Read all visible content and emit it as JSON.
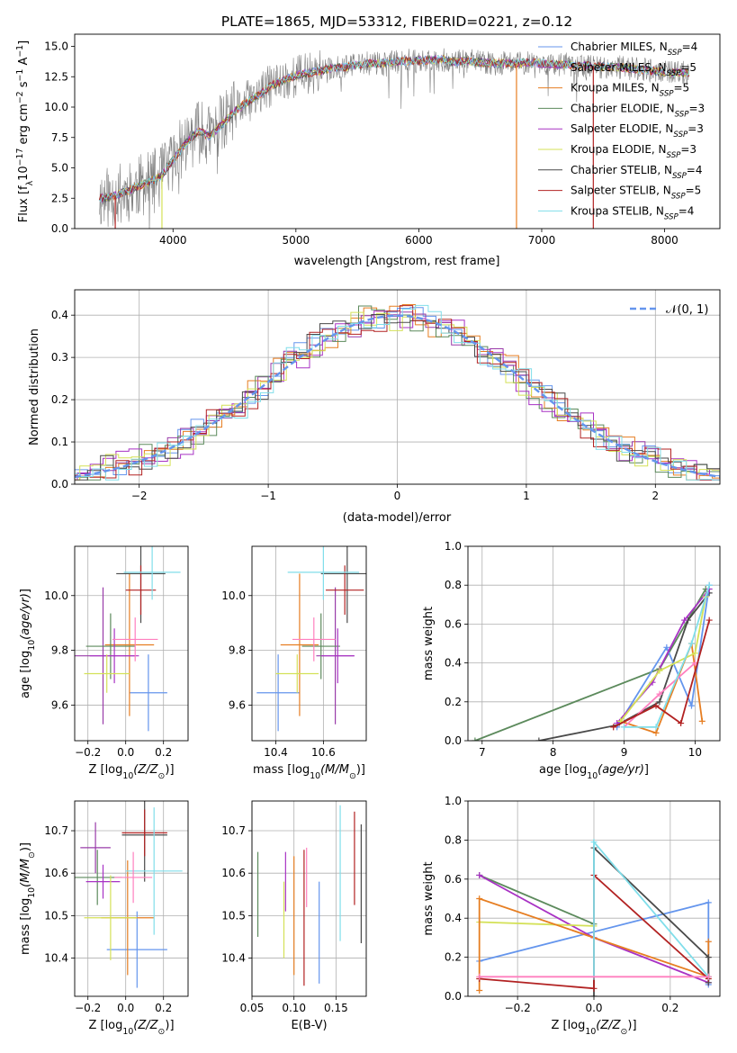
{
  "figure_title": "PLATE=1865, MJD=53312, FIBERID=0221, z=0.12",
  "colors": {
    "Chabrier MILES": "#6495ED",
    "Salpeter MILES": "#993BA9",
    "Kroupa MILES": "#E67E22",
    "Chabrier ELODIE": "#5C8A5C",
    "Salpeter ELODIE": "#A832C4",
    "Kroupa ELODIE": "#D4E157",
    "Chabrier STELIB": "#4A4A4A",
    "Salpeter STELIB": "#B22222",
    "Kroupa STELIB": "#80DEEA",
    "spectrum": "#808080",
    "normal": "#6495ED",
    "extra_pink": "#FF7FBF"
  },
  "chart_data": [
    {
      "id": "spectrum",
      "type": "line",
      "title": "PLATE=1865, MJD=53312, FIBERID=0221, z=0.12",
      "xlabel": "wavelength [Angstrom, rest frame]",
      "ylabel_main": "Flux [f",
      "ylabel_sub_lambda": "λ",
      "ylabel_mid": "10",
      "ylabel_exp1": "−17",
      "ylabel_unit1": " erg cm",
      "ylabel_exp2": "−2",
      "ylabel_unit2": " s",
      "ylabel_exp3": "−1",
      "ylabel_unit3": " A",
      "ylabel_exp4": "−1",
      "ylabel_end": "]",
      "xlim": [
        3200,
        8450
      ],
      "ylim": [
        0,
        16
      ],
      "xticks": [
        4000,
        5000,
        6000,
        7000,
        8000
      ],
      "yticks": [
        "0.0",
        "2.5",
        "5.0",
        "7.5",
        "10.0",
        "12.5",
        "15.0"
      ],
      "ytick_values": [
        0,
        2.5,
        5,
        7.5,
        10,
        12.5,
        15
      ],
      "legend_position": "top-right",
      "legend": [
        {
          "base": "Chabrier MILES, N",
          "sub": "SSP",
          "tail": "=4",
          "color": "#6495ED"
        },
        {
          "base": "Salpeter MILES, N",
          "sub": "SSP",
          "tail": "=5",
          "color": "#993BA9"
        },
        {
          "base": "Kroupa MILES, N",
          "sub": "SSP",
          "tail": "=5",
          "color": "#E67E22"
        },
        {
          "base": "Chabrier ELODIE, N",
          "sub": "SSP",
          "tail": "=3",
          "color": "#5C8A5C"
        },
        {
          "base": "Salpeter ELODIE, N",
          "sub": "SSP",
          "tail": "=3",
          "color": "#A832C4"
        },
        {
          "base": "Kroupa ELODIE, N",
          "sub": "SSP",
          "tail": "=3",
          "color": "#D4E157"
        },
        {
          "base": "Chabrier STELIB, N",
          "sub": "SSP",
          "tail": "=4",
          "color": "#4A4A4A"
        },
        {
          "base": "Salpeter STELIB, N",
          "sub": "SSP",
          "tail": "=5",
          "color": "#B22222"
        },
        {
          "base": "Kroupa STELIB, N",
          "sub": "SSP",
          "tail": "=4",
          "color": "#80DEEA"
        }
      ],
      "continuum_wavelength": [
        3400,
        3500,
        3600,
        3700,
        3800,
        3900,
        4000,
        4100,
        4200,
        4300,
        4400,
        4500,
        4600,
        4700,
        4800,
        4900,
        5000,
        5100,
        5200,
        5300,
        5400,
        5500,
        5600,
        5700,
        5800,
        5900,
        6000,
        6100,
        6200,
        6300,
        6400,
        6500,
        6600,
        6700,
        6800,
        6900,
        7000,
        7100,
        7200,
        7300,
        7400,
        7500,
        7600,
        7700,
        7800,
        7900,
        8000,
        8100,
        8200
      ],
      "continuum_flux": [
        2.5,
        2.6,
        3.0,
        3.4,
        3.8,
        4.3,
        5.6,
        7.0,
        8.0,
        7.6,
        8.6,
        9.6,
        10.4,
        11.0,
        11.8,
        12.2,
        12.6,
        12.8,
        13.0,
        13.2,
        13.3,
        13.5,
        13.6,
        13.6,
        13.7,
        13.8,
        13.8,
        13.9,
        13.9,
        13.7,
        13.8,
        13.7,
        13.6,
        13.6,
        13.6,
        13.7,
        13.6,
        13.5,
        13.5,
        13.4,
        13.4,
        13.3,
        13.3,
        13.2,
        13.1,
        13.0,
        12.9,
        12.8,
        12.8
      ],
      "drop_lines": [
        {
          "x": 3530,
          "color": "#B22222"
        },
        {
          "x": 3910,
          "color": "#D4E157"
        },
        {
          "x": 6795,
          "color": "#E67E22"
        },
        {
          "x": 7420,
          "color": "#B22222"
        }
      ]
    },
    {
      "id": "residual_histogram",
      "type": "line",
      "xlabel": "(data-model)/error",
      "ylabel": "Normed distribution",
      "xlim": [
        -2.5,
        2.5
      ],
      "ylim": [
        0,
        0.46
      ],
      "xticks": [
        "−2",
        "−1",
        "0",
        "1",
        "2"
      ],
      "xtick_values": [
        -2,
        -1,
        0,
        1,
        2
      ],
      "yticks": [
        "0.0",
        "0.1",
        "0.2",
        "0.3",
        "0.4"
      ],
      "ytick_values": [
        0,
        0.1,
        0.2,
        0.3,
        0.4
      ],
      "grid": true,
      "legend_position": "top-right",
      "legend_label": "𝒩(0, 1)",
      "bin_width": 0.1,
      "series": [
        {
          "color": "#6495ED",
          "phase": 0.0
        },
        {
          "color": "#993BA9",
          "phase": 1.3
        },
        {
          "color": "#E67E22",
          "phase": 2.1
        },
        {
          "color": "#5C8A5C",
          "phase": 2.9
        },
        {
          "color": "#A832C4",
          "phase": 3.7
        },
        {
          "color": "#D4E157",
          "phase": 4.4
        },
        {
          "color": "#4A4A4A",
          "phase": 5.2
        },
        {
          "color": "#B22222",
          "phase": 6.0
        },
        {
          "color": "#80DEEA",
          "phase": 6.8
        }
      ]
    },
    {
      "id": "age_vs_Z",
      "type": "scatter",
      "xlabel_main": "Z [log",
      "xlabel_sub": "10",
      "xlabel_tail": "(Z/Z",
      "xlabel_sym": "⊙",
      "xlabel_end": ")]",
      "ylabel_main": "age  [log",
      "ylabel_sub": "10",
      "ylabel_tail": "(age/yr)]",
      "xlim": [
        -0.27,
        0.33
      ],
      "ylim": [
        9.47,
        10.18
      ],
      "xticks": [
        "−0.2",
        "0.0",
        "0.2"
      ],
      "xtick_values": [
        -0.2,
        0,
        0.2
      ],
      "yticks": [
        "9.6",
        "9.8",
        "10.0"
      ],
      "ytick_values": [
        9.6,
        9.8,
        10.0
      ],
      "grid": true,
      "points": [
        {
          "x": 0.12,
          "y": 9.645,
          "xerr": 0.1,
          "yerr": 0.14,
          "color": "#6495ED"
        },
        {
          "x": -0.12,
          "y": 9.78,
          "xerr": 0.17,
          "yerr": 0.25,
          "color": "#993BA9"
        },
        {
          "x": 0.02,
          "y": 9.82,
          "xerr": 0.13,
          "yerr": 0.26,
          "color": "#E67E22"
        },
        {
          "x": -0.08,
          "y": 9.815,
          "xerr": 0.13,
          "yerr": 0.12,
          "color": "#5C8A5C"
        },
        {
          "x": -0.06,
          "y": 9.78,
          "xerr": 0.13,
          "yerr": 0.1,
          "color": "#A832C4"
        },
        {
          "x": -0.1,
          "y": 9.715,
          "xerr": 0.12,
          "yerr": 0.07,
          "color": "#D4E157"
        },
        {
          "x": 0.08,
          "y": 10.08,
          "xerr": 0.13,
          "yerr": 0.18,
          "color": "#4A4A4A"
        },
        {
          "x": 0.08,
          "y": 10.02,
          "xerr": 0.08,
          "yerr": 0.09,
          "color": "#B22222"
        },
        {
          "x": 0.14,
          "y": 10.085,
          "xerr": 0.15,
          "yerr": 0.1,
          "color": "#80DEEA"
        },
        {
          "x": 0.05,
          "y": 9.84,
          "xerr": 0.12,
          "yerr": 0.08,
          "color": "#FF7FBF"
        }
      ]
    },
    {
      "id": "age_vs_mass",
      "type": "scatter",
      "xlabel_main": "mass [log",
      "xlabel_sub": "10",
      "xlabel_tail": "(M/M",
      "xlabel_sym": "⊙",
      "xlabel_end": ")]",
      "xlim": [
        10.3,
        10.78
      ],
      "ylim": [
        9.47,
        10.18
      ],
      "xticks": [
        "10.4",
        "10.6"
      ],
      "xtick_values": [
        10.4,
        10.6
      ],
      "yticks": [
        "9.6",
        "9.8",
        "10.0"
      ],
      "ytick_values": [
        9.6,
        9.8,
        10.0
      ],
      "grid": true,
      "points": [
        {
          "x": 10.41,
          "y": 9.645,
          "xerr": 0.09,
          "yerr": 0.14,
          "color": "#6495ED"
        },
        {
          "x": 10.65,
          "y": 9.78,
          "xerr": 0.08,
          "yerr": 0.25,
          "color": "#993BA9"
        },
        {
          "x": 10.5,
          "y": 9.82,
          "xerr": 0.08,
          "yerr": 0.26,
          "color": "#E67E22"
        },
        {
          "x": 10.59,
          "y": 9.815,
          "xerr": 0.08,
          "yerr": 0.12,
          "color": "#5C8A5C"
        },
        {
          "x": 10.66,
          "y": 9.78,
          "xerr": 0.07,
          "yerr": 0.1,
          "color": "#A832C4"
        },
        {
          "x": 10.49,
          "y": 9.715,
          "xerr": 0.09,
          "yerr": 0.07,
          "color": "#D4E157"
        },
        {
          "x": 10.7,
          "y": 10.08,
          "xerr": 0.11,
          "yerr": 0.18,
          "color": "#4A4A4A"
        },
        {
          "x": 10.69,
          "y": 10.02,
          "xerr": 0.08,
          "yerr": 0.09,
          "color": "#B22222"
        },
        {
          "x": 10.6,
          "y": 10.085,
          "xerr": 0.15,
          "yerr": 0.1,
          "color": "#80DEEA"
        },
        {
          "x": 10.56,
          "y": 9.84,
          "xerr": 0.09,
          "yerr": 0.08,
          "color": "#FF7FBF"
        }
      ]
    },
    {
      "id": "weight_vs_age",
      "type": "line",
      "xlabel_main": "age  [log",
      "xlabel_sub": "10",
      "xlabel_tail": "(age/yr)]",
      "ylabel": "mass weight",
      "xlim": [
        6.8,
        10.35
      ],
      "ylim": [
        0,
        1
      ],
      "xticks": [
        "7",
        "8",
        "9",
        "10"
      ],
      "xtick_values": [
        7,
        8,
        9,
        10
      ],
      "yticks": [
        "0.0",
        "0.2",
        "0.4",
        "0.6",
        "0.8",
        "1.0"
      ],
      "ytick_values": [
        0,
        0.2,
        0.4,
        0.6,
        0.8,
        1
      ],
      "grid": true,
      "series": [
        {
          "color": "#5C8A5C",
          "x": [
            6.9,
            9.5,
            10.15
          ],
          "y": [
            0.0,
            0.37,
            0.78
          ]
        },
        {
          "color": "#4A4A4A",
          "x": [
            7.8,
            8.9,
            9.5,
            9.9,
            10.2
          ],
          "y": [
            0.0,
            0.08,
            0.2,
            0.62,
            0.76
          ]
        },
        {
          "color": "#6495ED",
          "x": [
            8.9,
            9.6,
            9.95,
            10.2
          ],
          "y": [
            0.07,
            0.48,
            0.18,
            0.8
          ]
        },
        {
          "color": "#A832C4",
          "x": [
            8.9,
            9.4,
            9.85,
            10.2
          ],
          "y": [
            0.09,
            0.3,
            0.62,
            0.78
          ]
        },
        {
          "color": "#E67E22",
          "x": [
            8.95,
            9.45,
            9.95,
            10.1
          ],
          "y": [
            0.1,
            0.04,
            0.5,
            0.1
          ]
        },
        {
          "color": "#D4E157",
          "x": [
            8.95,
            9.5,
            10.0,
            10.15
          ],
          "y": [
            0.1,
            0.36,
            0.45,
            0.74
          ]
        },
        {
          "color": "#FF7FBF",
          "x": [
            9.0,
            9.5,
            10.0
          ],
          "y": [
            0.07,
            0.24,
            0.4
          ]
        },
        {
          "color": "#80DEEA",
          "x": [
            9.0,
            9.45,
            9.95,
            10.2
          ],
          "y": [
            0.07,
            0.07,
            0.5,
            0.8
          ]
        },
        {
          "color": "#B22222",
          "x": [
            8.85,
            9.45,
            9.8,
            10.2
          ],
          "y": [
            0.07,
            0.18,
            0.09,
            0.62
          ]
        }
      ]
    },
    {
      "id": "mass_vs_Z",
      "type": "scatter",
      "xlabel_main": "Z [log",
      "xlabel_sub": "10",
      "xlabel_tail": "(Z/Z",
      "xlabel_sym": "⊙",
      "xlabel_end": ")]",
      "ylabel_main": "mass [log",
      "ylabel_sub": "10",
      "ylabel_tail": "(M/M",
      "ylabel_sym": "⊙",
      "ylabel_end": ")]",
      "xlim": [
        -0.27,
        0.33
      ],
      "ylim": [
        10.31,
        10.77
      ],
      "xticks": [
        "−0.2",
        "0.0",
        "0.2"
      ],
      "xtick_values": [
        -0.2,
        0,
        0.2
      ],
      "yticks": [
        "10.4",
        "10.5",
        "10.6",
        "10.7"
      ],
      "ytick_values": [
        10.4,
        10.5,
        10.6,
        10.7
      ],
      "grid": true,
      "points": [
        {
          "x": 0.06,
          "y": 10.42,
          "xerr": 0.16,
          "yerr": 0.09,
          "color": "#6495ED"
        },
        {
          "x": -0.16,
          "y": 10.66,
          "xerr": 0.08,
          "yerr": 0.06,
          "color": "#993BA9"
        },
        {
          "x": 0.01,
          "y": 10.495,
          "xerr": 0.14,
          "yerr": 0.135,
          "color": "#E67E22"
        },
        {
          "x": -0.15,
          "y": 10.59,
          "xerr": 0.13,
          "yerr": 0.065,
          "color": "#5C8A5C"
        },
        {
          "x": -0.12,
          "y": 10.58,
          "xerr": 0.09,
          "yerr": 0.04,
          "color": "#A832C4"
        },
        {
          "x": -0.08,
          "y": 10.495,
          "xerr": 0.14,
          "yerr": 0.1,
          "color": "#D4E157"
        },
        {
          "x": 0.1,
          "y": 10.69,
          "xerr": 0.12,
          "yerr": 0.11,
          "color": "#4A4A4A"
        },
        {
          "x": 0.1,
          "y": 10.695,
          "xerr": 0.12,
          "yerr": 0.055,
          "color": "#B22222"
        },
        {
          "x": 0.15,
          "y": 10.605,
          "xerr": 0.15,
          "yerr": 0.15,
          "color": "#80DEEA"
        },
        {
          "x": 0.04,
          "y": 10.59,
          "xerr": 0.1,
          "yerr": 0.06,
          "color": "#FF7FBF"
        }
      ]
    },
    {
      "id": "mass_vs_EBV",
      "type": "scatter",
      "xlabel": "E(B-V)",
      "xlim": [
        0.05,
        0.186
      ],
      "ylim": [
        10.31,
        10.77
      ],
      "xticks": [
        "0.05",
        "0.10",
        "0.15"
      ],
      "xtick_values": [
        0.05,
        0.1,
        0.15
      ],
      "yticks": [
        "10.4",
        "10.5",
        "10.6",
        "10.7"
      ],
      "ytick_values": [
        10.4,
        10.5,
        10.6,
        10.7
      ],
      "grid": true,
      "points": [
        {
          "x": 0.057,
          "y": 10.55,
          "yerr": 0.1,
          "color": "#5C8A5C"
        },
        {
          "x": 0.088,
          "y": 10.49,
          "yerr": 0.09,
          "color": "#D4E157"
        },
        {
          "x": 0.09,
          "y": 10.58,
          "yerr": 0.07,
          "color": "#A832C4"
        },
        {
          "x": 0.1,
          "y": 10.5,
          "yerr": 0.14,
          "color": "#E67E22"
        },
        {
          "x": 0.112,
          "y": 10.495,
          "yerr": 0.16,
          "color": "#B22222"
        },
        {
          "x": 0.115,
          "y": 10.59,
          "yerr": 0.07,
          "color": "#FF7FBF"
        },
        {
          "x": 0.13,
          "y": 10.46,
          "yerr": 0.12,
          "color": "#6495ED"
        },
        {
          "x": 0.155,
          "y": 10.6,
          "yerr": 0.16,
          "color": "#80DEEA"
        },
        {
          "x": 0.172,
          "y": 10.635,
          "yerr": 0.11,
          "color": "#B22222"
        },
        {
          "x": 0.18,
          "y": 10.575,
          "yerr": 0.14,
          "color": "#4A4A4A"
        }
      ]
    },
    {
      "id": "weight_vs_Z",
      "type": "line",
      "xlabel_main": "Z [log",
      "xlabel_sub": "10",
      "xlabel_tail": "(Z/Z",
      "xlabel_sym": "⊙",
      "xlabel_end": ")]",
      "ylabel": "mass weight",
      "xlim": [
        -0.33,
        0.33
      ],
      "ylim": [
        0,
        1
      ],
      "xticks": [
        "−0.2",
        "0.0",
        "0.2"
      ],
      "xtick_values": [
        -0.2,
        0,
        0.2
      ],
      "yticks": [
        "0.0",
        "0.2",
        "0.4",
        "0.6",
        "0.8",
        "1.0"
      ],
      "ytick_values": [
        0,
        0.2,
        0.4,
        0.6,
        0.8,
        1
      ],
      "grid": true,
      "series": [
        {
          "color": "#6495ED",
          "x": [
            -0.3,
            0.3,
            0.3
          ],
          "y": [
            0.18,
            0.48,
            0.06
          ]
        },
        {
          "color": "#5C8A5C",
          "x": [
            -0.3,
            0.0
          ],
          "y": [
            0.62,
            0.37
          ]
        },
        {
          "color": "#A832C4",
          "x": [
            -0.3,
            0.0,
            0.3
          ],
          "y": [
            0.62,
            0.3,
            0.07
          ]
        },
        {
          "color": "#D4E157",
          "x": [
            -0.3,
            0.0
          ],
          "y": [
            0.38,
            0.36
          ]
        },
        {
          "color": "#E67E22",
          "x": [
            -0.3,
            -0.3,
            0.3,
            0.3
          ],
          "y": [
            0.03,
            0.5,
            0.1,
            0.28
          ]
        },
        {
          "color": "#4A4A4A",
          "x": [
            0.0,
            0.0,
            0.3,
            0.3
          ],
          "y": [
            0.0,
            0.76,
            0.2,
            0.07
          ]
        },
        {
          "color": "#B22222",
          "x": [
            -0.3,
            0.0,
            0.0,
            0.3
          ],
          "y": [
            0.09,
            0.04,
            0.62,
            0.09
          ]
        },
        {
          "color": "#80DEEA",
          "x": [
            0.0,
            0.0,
            0.3
          ],
          "y": [
            0.1,
            0.79,
            0.1
          ]
        },
        {
          "color": "#FF7FBF",
          "x": [
            -0.3,
            0.3
          ],
          "y": [
            0.1,
            0.1
          ]
        }
      ]
    }
  ]
}
